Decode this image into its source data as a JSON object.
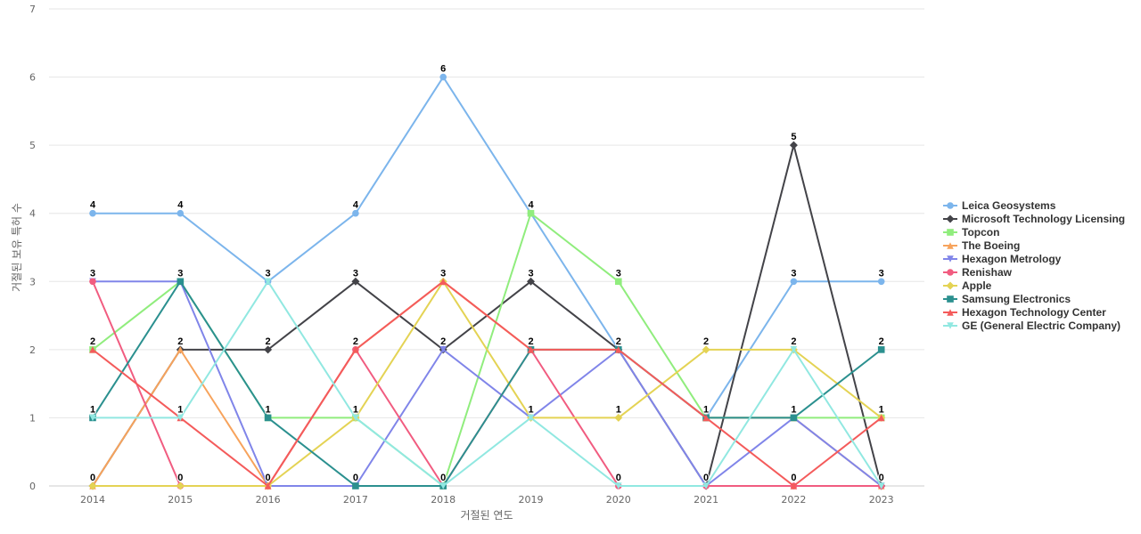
{
  "chart_data": {
    "type": "line",
    "title": "",
    "xlabel": "거절된 연도",
    "ylabel": "거절된 보유 특허 수",
    "categories": [
      "2014",
      "2015",
      "2016",
      "2017",
      "2018",
      "2019",
      "2020",
      "2021",
      "2022",
      "2023"
    ],
    "ylim": [
      0,
      7
    ],
    "yticks": [
      0,
      1,
      2,
      3,
      4,
      5,
      6,
      7
    ],
    "grid": true,
    "legend_position": "right",
    "series": [
      {
        "name": "Leica Geosystems",
        "color": "#7cb5ec",
        "marker": "circle",
        "values": [
          4,
          4,
          3,
          4,
          6,
          4,
          2,
          1,
          3,
          3
        ]
      },
      {
        "name": "Microsoft Technology Licensing",
        "color": "#434348",
        "marker": "diamond",
        "values": [
          0,
          2,
          2,
          3,
          2,
          3,
          2,
          0,
          5,
          0
        ]
      },
      {
        "name": "Topcon",
        "color": "#90ed7d",
        "marker": "square",
        "values": [
          2,
          3,
          1,
          1,
          0,
          4,
          3,
          1,
          1,
          1
        ]
      },
      {
        "name": "The Boeing",
        "color": "#f7a35c",
        "marker": "triangle",
        "values": [
          0,
          2,
          0,
          2,
          3,
          2,
          2,
          1,
          1,
          0
        ]
      },
      {
        "name": "Hexagon Metrology",
        "color": "#8085e9",
        "marker": "triangle-down",
        "values": [
          3,
          3,
          0,
          0,
          2,
          1,
          2,
          0,
          1,
          0
        ]
      },
      {
        "name": "Renishaw",
        "color": "#f15c80",
        "marker": "circle",
        "values": [
          3,
          0,
          0,
          2,
          0,
          2,
          0,
          0,
          0,
          0
        ]
      },
      {
        "name": "Apple",
        "color": "#e4d354",
        "marker": "diamond",
        "values": [
          0,
          0,
          0,
          1,
          3,
          1,
          1,
          2,
          2,
          1
        ]
      },
      {
        "name": "Samsung Electronics",
        "color": "#2b908f",
        "marker": "square",
        "values": [
          1,
          3,
          1,
          0,
          0,
          2,
          2,
          1,
          1,
          2
        ]
      },
      {
        "name": "Hexagon Technology Center",
        "color": "#f45b5b",
        "marker": "triangle",
        "values": [
          2,
          1,
          0,
          2,
          3,
          2,
          2,
          1,
          0,
          1
        ]
      },
      {
        "name": "GE (General Electric Company)",
        "color": "#91e8e1",
        "marker": "triangle-down",
        "values": [
          1,
          1,
          3,
          1,
          0,
          1,
          0,
          0,
          2,
          0
        ]
      }
    ],
    "data_labels": [
      {
        "x": "2014",
        "values": [
          4,
          3,
          2,
          1,
          0
        ]
      },
      {
        "x": "2015",
        "values": [
          4,
          3,
          2,
          1,
          0
        ]
      },
      {
        "x": "2016",
        "values": [
          3,
          2,
          1,
          0
        ]
      },
      {
        "x": "2017",
        "values": [
          4,
          3,
          2,
          1,
          0
        ]
      },
      {
        "x": "2018",
        "values": [
          6,
          3,
          2,
          0
        ]
      },
      {
        "x": "2019",
        "values": [
          4,
          3,
          2,
          1
        ]
      },
      {
        "x": "2020",
        "values": [
          3,
          2,
          1,
          0
        ]
      },
      {
        "x": "2021",
        "values": [
          2,
          1,
          0
        ]
      },
      {
        "x": "2022",
        "values": [
          5,
          3,
          2,
          1,
          0
        ]
      },
      {
        "x": "2023",
        "values": [
          3,
          2,
          1,
          0
        ]
      }
    ]
  }
}
